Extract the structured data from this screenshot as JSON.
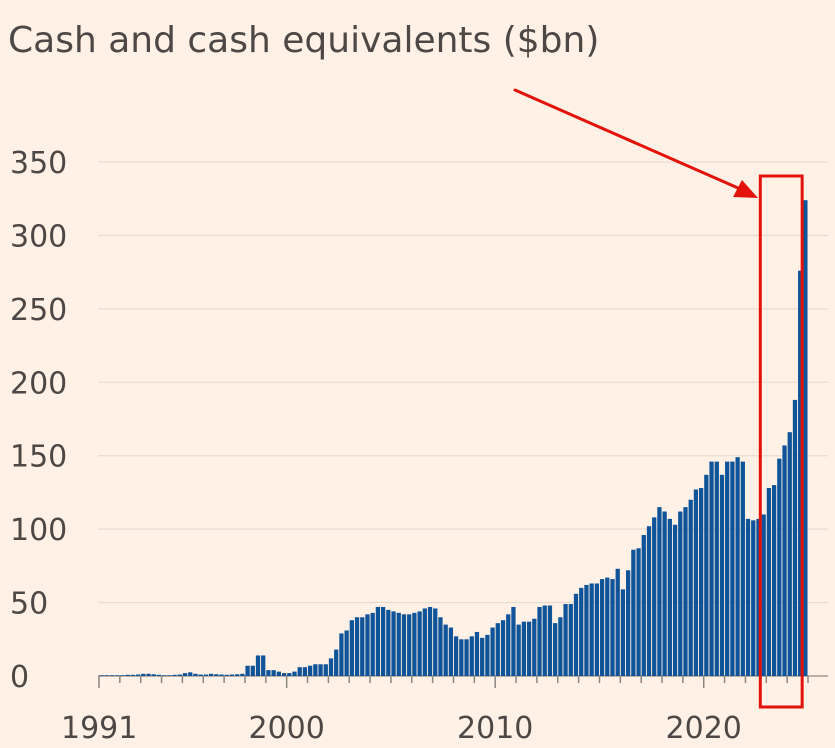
{
  "chart_data": {
    "type": "bar",
    "title": "Cash and cash equivalents ($bn)",
    "xlabel": "",
    "ylabel": "",
    "ylim": [
      0,
      350
    ],
    "yticks": [
      0,
      50,
      100,
      150,
      200,
      250,
      300,
      350
    ],
    "x_start_year": 1991,
    "periods_per_year": 4,
    "xtick_labels": [
      "1991",
      "2000",
      "2010",
      "2020"
    ],
    "xtick_years": [
      1991,
      2000,
      2010,
      2020
    ],
    "grid": true,
    "series": [
      {
        "name": "Cash and cash equivalents",
        "values": [
          0.5,
          0.5,
          0.5,
          0.5,
          0.5,
          0.8,
          0.8,
          1.0,
          1.5,
          1.5,
          1.2,
          0.8,
          0.5,
          0.5,
          0.8,
          1.0,
          2.0,
          2.5,
          1.5,
          1.0,
          1.0,
          1.5,
          1.2,
          1.0,
          0.8,
          1.0,
          1.2,
          1.5,
          7,
          7,
          14,
          14,
          4,
          4,
          3,
          2,
          2,
          3,
          6,
          6,
          7,
          8,
          8,
          8,
          12,
          18,
          29,
          31,
          38,
          40,
          40,
          42,
          43,
          47,
          47,
          45,
          44,
          43,
          42,
          42,
          43,
          44,
          46,
          47,
          46,
          40,
          35,
          33,
          27,
          25,
          25,
          27,
          30,
          26,
          28,
          33,
          36,
          38,
          42,
          47,
          35,
          37,
          37,
          39,
          47,
          48,
          48,
          36,
          40,
          49,
          49,
          56,
          60,
          62,
          63,
          63,
          66,
          67,
          66,
          73,
          59,
          72,
          86,
          87,
          96,
          102,
          108,
          115,
          112,
          107,
          103,
          112,
          115,
          120,
          127,
          128,
          137,
          146,
          146,
          137,
          146,
          146,
          149,
          146,
          107,
          106,
          107,
          110,
          128,
          130,
          148,
          157,
          166,
          188,
          276,
          324
        ]
      }
    ],
    "highlight": {
      "color": "#e3120b",
      "range_periods": [
        128,
        132
      ],
      "arrow": true
    }
  }
}
